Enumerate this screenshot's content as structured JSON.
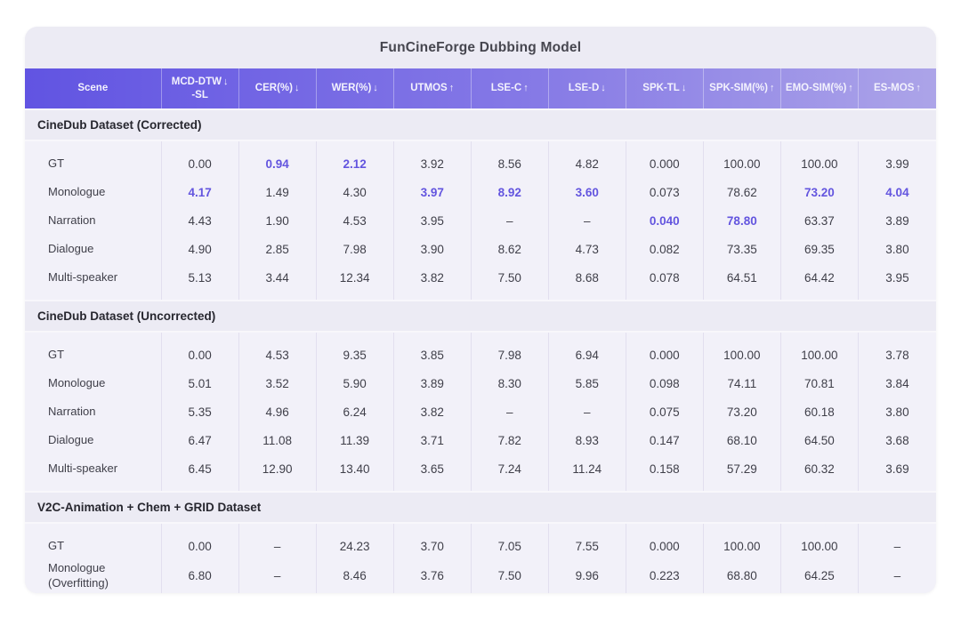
{
  "colors": {
    "accent_gradient_left": "#6154E2",
    "accent_gradient_right": "#ACA4E8",
    "highlight_value": "#6355DF",
    "card_background": "#ECEBF4",
    "row_background": "#F2F1F9",
    "header_text": "#F3F2FD",
    "body_text": "#3F3F49"
  },
  "chart_data": {
    "type": "table",
    "title": "FunCineForge Dubbing Model",
    "columns": [
      {
        "label": "Scene",
        "arrow": ""
      },
      {
        "label": "MCD-DTW",
        "label2": "-SL",
        "arrow": "↓"
      },
      {
        "label": "CER(%)",
        "arrow": "↓"
      },
      {
        "label": "WER(%)",
        "arrow": "↓"
      },
      {
        "label": "UTMOS",
        "arrow": "↑"
      },
      {
        "label": "LSE-C",
        "arrow": "↑"
      },
      {
        "label": "LSE-D",
        "arrow": "↓"
      },
      {
        "label": "SPK-TL",
        "arrow": "↓"
      },
      {
        "label": "SPK-SIM(%)",
        "arrow": "↑"
      },
      {
        "label": "EMO-SIM(%)",
        "arrow": "↑"
      },
      {
        "label": "ES-MOS",
        "arrow": "↑"
      }
    ],
    "sections": [
      {
        "title": "CineDub Dataset (Corrected)",
        "rows": [
          {
            "scene": "GT",
            "cells": [
              "0.00",
              "0.94",
              "2.12",
              "3.92",
              "8.56",
              "4.82",
              "0.000",
              "100.00",
              "100.00",
              "3.99"
            ],
            "hl": [
              false,
              true,
              true,
              false,
              false,
              false,
              false,
              false,
              false,
              false
            ]
          },
          {
            "scene": "Monologue",
            "cells": [
              "4.17",
              "1.49",
              "4.30",
              "3.97",
              "8.92",
              "3.60",
              "0.073",
              "78.62",
              "73.20",
              "4.04"
            ],
            "hl": [
              true,
              false,
              false,
              true,
              true,
              true,
              false,
              false,
              true,
              true
            ]
          },
          {
            "scene": "Narration",
            "cells": [
              "4.43",
              "1.90",
              "4.53",
              "3.95",
              "–",
              "–",
              "0.040",
              "78.80",
              "63.37",
              "3.89"
            ],
            "hl": [
              false,
              false,
              false,
              false,
              false,
              false,
              true,
              true,
              false,
              false
            ]
          },
          {
            "scene": "Dialogue",
            "cells": [
              "4.90",
              "2.85",
              "7.98",
              "3.90",
              "8.62",
              "4.73",
              "0.082",
              "73.35",
              "69.35",
              "3.80"
            ]
          },
          {
            "scene": "Multi-speaker",
            "cells": [
              "5.13",
              "3.44",
              "12.34",
              "3.82",
              "7.50",
              "8.68",
              "0.078",
              "64.51",
              "64.42",
              "3.95"
            ]
          }
        ]
      },
      {
        "title": "CineDub Dataset (Uncorrected)",
        "rows": [
          {
            "scene": "GT",
            "cells": [
              "0.00",
              "4.53",
              "9.35",
              "3.85",
              "7.98",
              "6.94",
              "0.000",
              "100.00",
              "100.00",
              "3.78"
            ]
          },
          {
            "scene": "Monologue",
            "cells": [
              "5.01",
              "3.52",
              "5.90",
              "3.89",
              "8.30",
              "5.85",
              "0.098",
              "74.11",
              "70.81",
              "3.84"
            ]
          },
          {
            "scene": "Narration",
            "cells": [
              "5.35",
              "4.96",
              "6.24",
              "3.82",
              "–",
              "–",
              "0.075",
              "73.20",
              "60.18",
              "3.80"
            ]
          },
          {
            "scene": "Dialogue",
            "cells": [
              "6.47",
              "11.08",
              "11.39",
              "3.71",
              "7.82",
              "8.93",
              "0.147",
              "68.10",
              "64.50",
              "3.68"
            ]
          },
          {
            "scene": "Multi-speaker",
            "cells": [
              "6.45",
              "12.90",
              "13.40",
              "3.65",
              "7.24",
              "11.24",
              "0.158",
              "57.29",
              "60.32",
              "3.69"
            ]
          }
        ]
      },
      {
        "title": "V2C-Animation + Chem + GRID Dataset",
        "rows": [
          {
            "scene": "GT",
            "cells": [
              "0.00",
              "–",
              "24.23",
              "3.70",
              "7.05",
              "7.55",
              "0.000",
              "100.00",
              "100.00",
              "–"
            ]
          },
          {
            "scene": "Monologue\n(Overfitting)",
            "cells": [
              "6.80",
              "–",
              "8.46",
              "3.76",
              "7.50",
              "9.96",
              "0.223",
              "68.80",
              "64.25",
              "–"
            ]
          }
        ]
      }
    ]
  }
}
